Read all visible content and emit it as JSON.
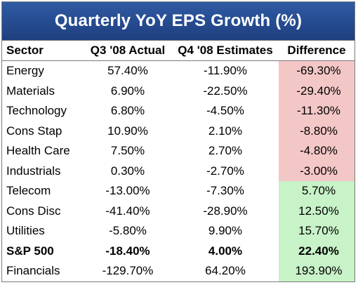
{
  "chart_data": {
    "type": "table",
    "title": "Quarterly YoY EPS Growth (%)",
    "columns": [
      "Sector",
      "Q3 '08 Actual",
      "Q4 '08 Estimates",
      "Difference"
    ],
    "rows": [
      {
        "sector": "Energy",
        "q3": "57.40%",
        "q4": "-11.90%",
        "diff": "-69.30%",
        "sign": "neg",
        "bold": false
      },
      {
        "sector": "Materials",
        "q3": "6.90%",
        "q4": "-22.50%",
        "diff": "-29.40%",
        "sign": "neg",
        "bold": false
      },
      {
        "sector": "Technology",
        "q3": "6.80%",
        "q4": "-4.50%",
        "diff": "-11.30%",
        "sign": "neg",
        "bold": false
      },
      {
        "sector": "Cons Stap",
        "q3": "10.90%",
        "q4": "2.10%",
        "diff": "-8.80%",
        "sign": "neg",
        "bold": false
      },
      {
        "sector": "Health Care",
        "q3": "7.50%",
        "q4": "2.70%",
        "diff": "-4.80%",
        "sign": "neg",
        "bold": false
      },
      {
        "sector": "Industrials",
        "q3": "0.30%",
        "q4": "-2.70%",
        "diff": "-3.00%",
        "sign": "neg",
        "bold": false
      },
      {
        "sector": "Telecom",
        "q3": "-13.00%",
        "q4": "-7.30%",
        "diff": "5.70%",
        "sign": "pos",
        "bold": false
      },
      {
        "sector": "Cons Disc",
        "q3": "-41.40%",
        "q4": "-28.90%",
        "diff": "12.50%",
        "sign": "pos",
        "bold": false
      },
      {
        "sector": "Utilities",
        "q3": "-5.80%",
        "q4": "9.90%",
        "diff": "15.70%",
        "sign": "pos",
        "bold": false
      },
      {
        "sector": "S&P 500",
        "q3": "-18.40%",
        "q4": "4.00%",
        "diff": "22.40%",
        "sign": "pos",
        "bold": true
      },
      {
        "sector": "Financials",
        "q3": "-129.70%",
        "q4": "64.20%",
        "diff": "193.90%",
        "sign": "pos",
        "bold": false
      }
    ]
  },
  "colors": {
    "title_bar": "#2a529a",
    "negative_fill": "#f4c7c7",
    "positive_fill": "#c8f2c8"
  }
}
